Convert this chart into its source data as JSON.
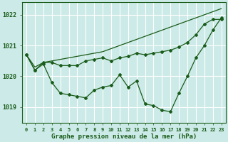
{
  "title": "Graphe pression niveau de la mer (hPa)",
  "bg_color": "#cceae7",
  "grid_color": "#ffffff",
  "line_color": "#1a5c1a",
  "ylim": [
    1018.5,
    1022.4
  ],
  "yticks": [
    1019,
    1020,
    1021,
    1022
  ],
  "hours": [
    0,
    1,
    2,
    3,
    4,
    5,
    6,
    7,
    8,
    9,
    10,
    11,
    12,
    13,
    14,
    15,
    16,
    17,
    18,
    19,
    20,
    21,
    22,
    23
  ],
  "series1": [
    1020.7,
    1020.2,
    1020.4,
    1019.8,
    1019.45,
    1019.4,
    1019.35,
    1019.3,
    1019.55,
    1019.65,
    1019.7,
    1020.05,
    1019.65,
    1019.85,
    1019.1,
    1019.05,
    1018.9,
    1018.85,
    1019.45,
    1020.0,
    1020.6,
    1021.0,
    1021.5,
    1021.9
  ],
  "series2": [
    1020.7,
    1020.2,
    1020.45,
    1020.45,
    1020.35,
    1020.35,
    1020.35,
    1020.5,
    1020.55,
    1020.6,
    1020.5,
    1020.6,
    1020.65,
    1020.75,
    1020.7,
    1020.75,
    1020.8,
    1020.85,
    1020.95,
    1021.1,
    1021.35,
    1021.7,
    1021.85,
    1021.85
  ],
  "series3": [
    1020.7,
    1020.3,
    1020.45,
    1020.5,
    1020.55,
    1020.6,
    1020.65,
    1020.7,
    1020.75,
    1020.8,
    1020.9,
    1021.0,
    1021.1,
    1021.2,
    1021.3,
    1021.4,
    1021.5,
    1021.6,
    1021.7,
    1021.8,
    1021.9,
    1022.0,
    1022.1,
    1022.2
  ],
  "marker_size": 2.0,
  "line_width": 0.9
}
